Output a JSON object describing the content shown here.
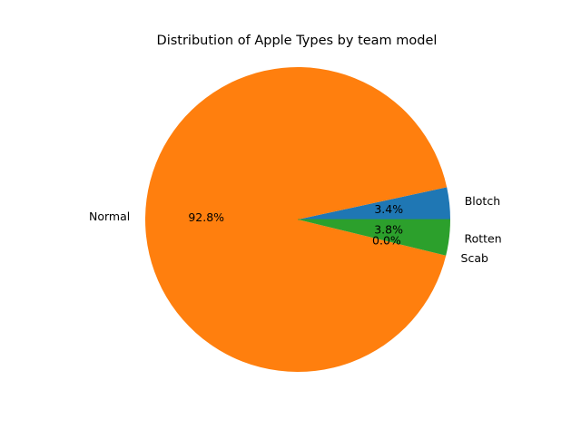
{
  "chart_data": {
    "type": "pie",
    "title": "Distribution of Apple Types by team model",
    "categories": [
      "Blotch",
      "Normal",
      "Scab",
      "Rotten"
    ],
    "values": [
      3.4,
      92.8,
      0.0,
      3.8
    ],
    "value_labels": [
      "3.4%",
      "92.8%",
      "0.0%",
      "3.8%"
    ],
    "colors": [
      "#1f77b4",
      "#ff7f0e",
      "#2ca02c",
      "#2ca02c"
    ],
    "start_angle_deg": 0,
    "direction": "counterclockwise",
    "legend": "none"
  }
}
